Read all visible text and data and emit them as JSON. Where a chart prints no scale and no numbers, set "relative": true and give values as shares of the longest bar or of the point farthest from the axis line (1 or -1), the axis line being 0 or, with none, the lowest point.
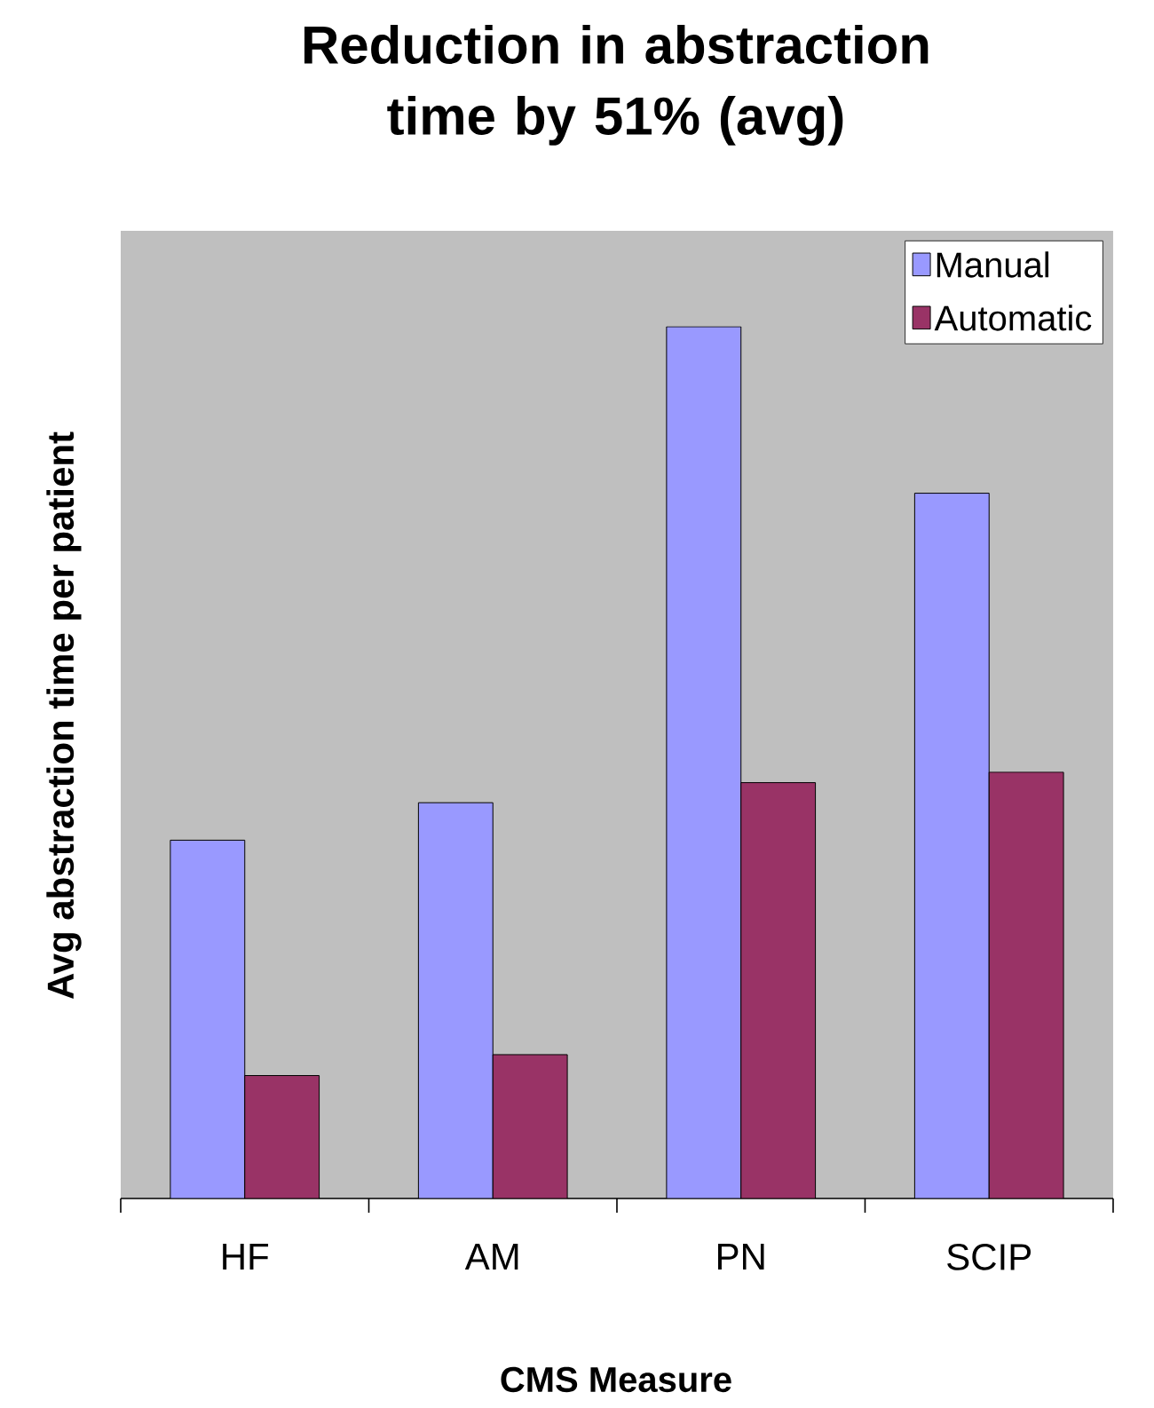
{
  "chart_data": {
    "type": "bar",
    "title": "Reduction in abstraction time by 51% (avg)",
    "xlabel": "CMS Measure",
    "ylabel": "Avg abstraction time per patient",
    "relative": true,
    "categories": [
      "HF",
      "AM",
      "PN",
      "SCIP"
    ],
    "series": [
      {
        "name": "Manual",
        "color": "#9999ff",
        "values": [
          0.411,
          0.454,
          1,
          0.809
        ]
      },
      {
        "name": "Automatic",
        "color": "#993366",
        "values": [
          0.141,
          0.165,
          0.477,
          0.489
        ]
      }
    ],
    "legend": "top right"
  }
}
